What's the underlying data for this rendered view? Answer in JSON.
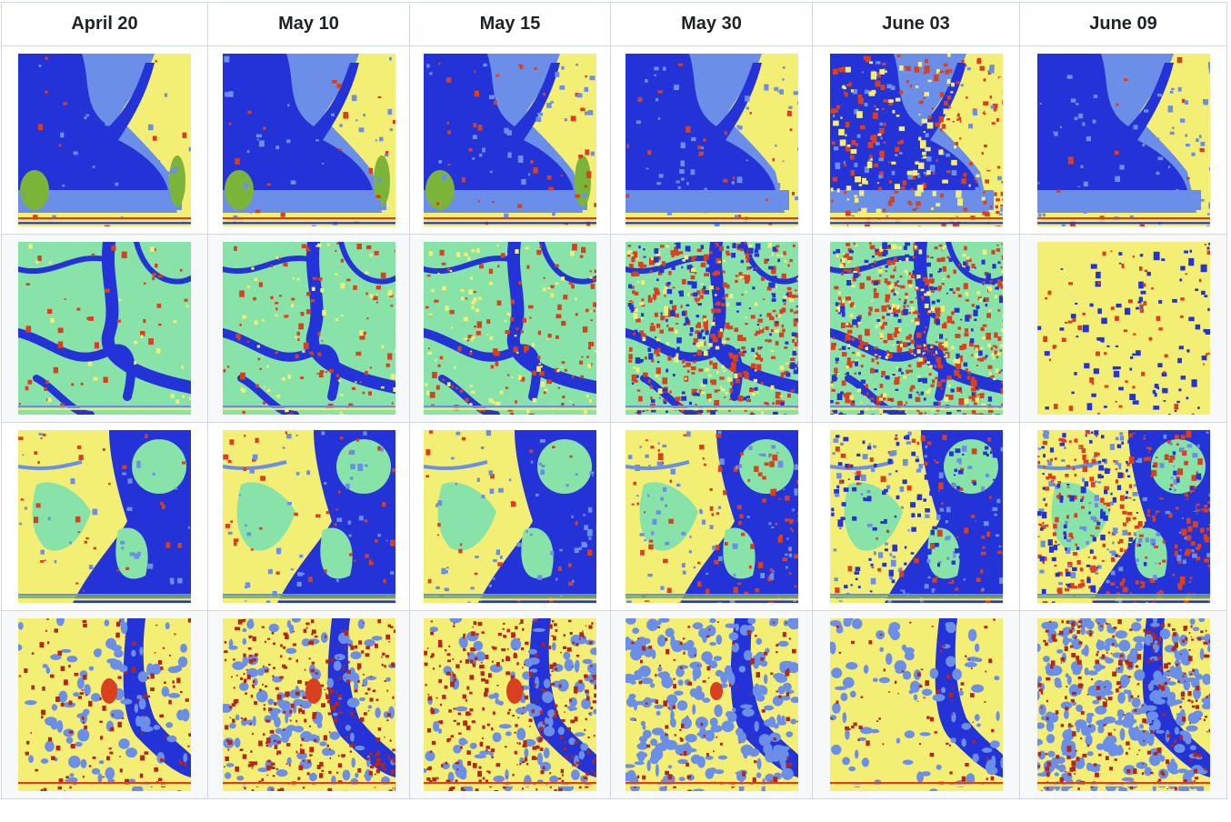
{
  "table": {
    "headers": [
      "April 20",
      "May 10",
      "May 15",
      "May 30",
      "June 03",
      "June 09"
    ],
    "rows": [
      {
        "scene": "estuary-bay",
        "cells": [
          "April 20 classification map",
          "May 10 classification map",
          "May 15 classification map",
          "May 30 classification map",
          "June 03 classification map",
          "June 09 classification map"
        ]
      },
      {
        "scene": "mangrove-channels",
        "cells": [
          "April 20 classification map",
          "May 10 classification map",
          "May 15 classification map",
          "May 30 classification map",
          "June 03 classification map",
          "June 09 classification map"
        ]
      },
      {
        "scene": "island-river",
        "cells": [
          "April 20 classification map",
          "May 10 classification map",
          "May 15 classification map",
          "May 30 classification map",
          "June 03 classification map",
          "June 09 classification map"
        ]
      },
      {
        "scene": "river-floodplain",
        "cells": [
          "April 20 classification map",
          "May 10 classification map",
          "May 15 classification map",
          "May 30 classification map",
          "June 03 classification map",
          "June 09 classification map"
        ]
      }
    ]
  },
  "colors": {
    "water": "#2433d8",
    "shallow": "#6b8fe8",
    "land": "#f3ee74",
    "vegetation": "#88e3a8",
    "change": "#d8401f",
    "darkChange": "#b2271a",
    "green": "#7ab53a",
    "border": "#d0d7de"
  }
}
